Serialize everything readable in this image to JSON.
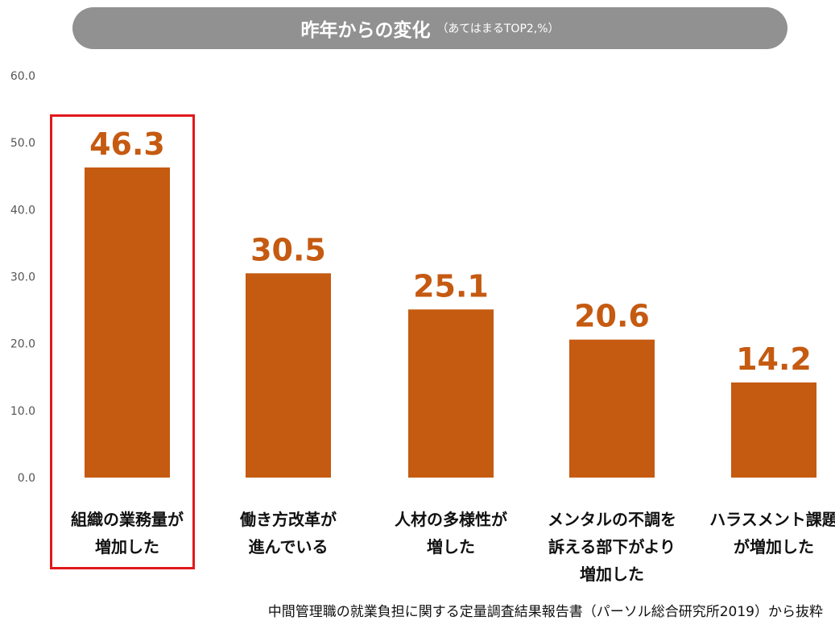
{
  "header": {
    "title": "昨年からの変化",
    "subtitle": "（あてはまるTOP2,%）"
  },
  "chart_data": {
    "type": "bar",
    "title": "昨年からの変化",
    "subtitle": "（あてはまるTOP2,%）",
    "categories": [
      [
        "組織の業務量が",
        "増加した"
      ],
      [
        "働き方改革が",
        "進んでいる"
      ],
      [
        "人材の多様性が",
        "増した"
      ],
      [
        "メンタルの不調を",
        "訴える部下がより",
        "増加した"
      ],
      [
        "ハラスメント課題",
        "が増加した"
      ]
    ],
    "values": [
      46.3,
      30.5,
      25.1,
      20.6,
      14.2
    ],
    "data_labels": [
      "46.3",
      "30.5",
      "25.1",
      "20.6",
      "14.2"
    ],
    "ylim": [
      0,
      60
    ],
    "yticks": [
      "0.0",
      "10.0",
      "20.0",
      "30.0",
      "40.0",
      "50.0",
      "60.0"
    ],
    "grid": false,
    "bar_color": "#c55a11",
    "highlighted_category_index": 0,
    "highlight_color": "#e0191b"
  },
  "source": "中間管理職の就業負担に関する定量調査結果報告書（パーソル総合研究所2019）から抜粋"
}
